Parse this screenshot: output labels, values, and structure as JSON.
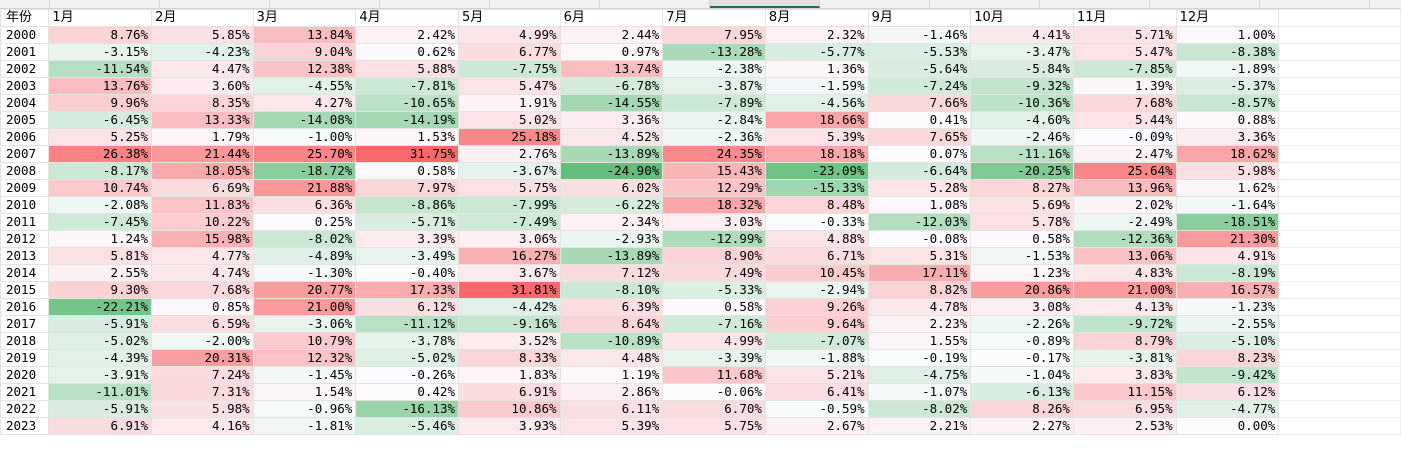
{
  "sheet": {
    "corner_label": "年份",
    "month_labels": [
      "1月",
      "2月",
      "3月",
      "4月",
      "5月",
      "6月",
      "7月",
      "8月",
      "9月",
      "10月",
      "11月",
      "12月"
    ],
    "selected_month": "7月",
    "rows": [
      {
        "year": "2000",
        "values": [
          "8.76%",
          "5.85%",
          "13.84%",
          "2.42%",
          "4.99%",
          "2.44%",
          "7.95%",
          "2.32%",
          "-1.46%",
          "4.41%",
          "5.71%",
          "1.00%"
        ]
      },
      {
        "year": "2001",
        "values": [
          "-3.15%",
          "-4.23%",
          "9.04%",
          "0.62%",
          "6.77%",
          "0.97%",
          "-13.28%",
          "-5.77%",
          "-5.53%",
          "-3.47%",
          "5.47%",
          "-8.38%"
        ]
      },
      {
        "year": "2002",
        "values": [
          "-11.54%",
          "4.47%",
          "12.38%",
          "5.88%",
          "-7.75%",
          "13.74%",
          "-2.38%",
          "1.36%",
          "-5.64%",
          "-5.84%",
          "-7.85%",
          "-1.89%"
        ]
      },
      {
        "year": "2003",
        "values": [
          "13.76%",
          "3.60%",
          "-4.55%",
          "-7.81%",
          "5.47%",
          "-6.78%",
          "-3.87%",
          "-1.59%",
          "-7.24%",
          "-9.32%",
          "1.39%",
          "-5.37%"
        ]
      },
      {
        "year": "2004",
        "values": [
          "9.96%",
          "8.35%",
          "4.27%",
          "-10.65%",
          "1.91%",
          "-14.55%",
          "-7.89%",
          "-4.56%",
          "7.66%",
          "-10.36%",
          "7.68%",
          "-8.57%"
        ]
      },
      {
        "year": "2005",
        "values": [
          "-6.45%",
          "13.33%",
          "-14.08%",
          "-14.19%",
          "5.02%",
          "3.36%",
          "-2.84%",
          "18.66%",
          "0.41%",
          "-4.60%",
          "5.44%",
          "0.88%"
        ]
      },
      {
        "year": "2006",
        "values": [
          "5.25%",
          "1.79%",
          "-1.00%",
          "1.53%",
          "25.18%",
          "4.52%",
          "-2.36%",
          "5.39%",
          "7.65%",
          "-2.46%",
          "-0.09%",
          "3.36%"
        ]
      },
      {
        "year": "2007",
        "values": [
          "26.38%",
          "21.44%",
          "25.70%",
          "31.75%",
          "2.76%",
          "-13.89%",
          "24.35%",
          "18.18%",
          "0.07%",
          "-11.16%",
          "2.47%",
          "18.62%"
        ]
      },
      {
        "year": "2008",
        "values": [
          "-8.17%",
          "18.05%",
          "-18.72%",
          "0.58%",
          "-3.67%",
          "-24.90%",
          "15.43%",
          "-23.09%",
          "-6.64%",
          "-20.25%",
          "25.64%",
          "5.98%"
        ]
      },
      {
        "year": "2009",
        "values": [
          "10.74%",
          "6.69%",
          "21.88%",
          "7.97%",
          "5.75%",
          "6.02%",
          "12.29%",
          "-15.33%",
          "5.28%",
          "8.27%",
          "13.96%",
          "1.62%"
        ]
      },
      {
        "year": "2010",
        "values": [
          "-2.08%",
          "11.83%",
          "6.36%",
          "-8.86%",
          "-7.99%",
          "-6.22%",
          "18.32%",
          "8.48%",
          "1.08%",
          "5.69%",
          "2.02%",
          "-1.64%"
        ]
      },
      {
        "year": "2011",
        "values": [
          "-7.45%",
          "10.22%",
          "0.25%",
          "-5.71%",
          "-7.49%",
          "2.34%",
          "3.03%",
          "-0.33%",
          "-12.03%",
          "5.78%",
          "-2.49%",
          "-18.51%"
        ]
      },
      {
        "year": "2012",
        "values": [
          "1.24%",
          "15.98%",
          "-8.02%",
          "3.39%",
          "3.06%",
          "-2.93%",
          "-12.99%",
          "4.88%",
          "-0.08%",
          "0.58%",
          "-12.36%",
          "21.30%"
        ]
      },
      {
        "year": "2013",
        "values": [
          "5.81%",
          "4.77%",
          "-4.89%",
          "-3.49%",
          "16.27%",
          "-13.89%",
          "8.90%",
          "6.71%",
          "5.31%",
          "-1.53%",
          "13.06%",
          "4.91%"
        ]
      },
      {
        "year": "2014",
        "values": [
          "2.55%",
          "4.74%",
          "-1.30%",
          "-0.40%",
          "3.67%",
          "7.12%",
          "7.49%",
          "10.45%",
          "17.11%",
          "1.23%",
          "4.83%",
          "-8.19%"
        ]
      },
      {
        "year": "2015",
        "values": [
          "9.30%",
          "7.68%",
          "20.77%",
          "17.33%",
          "31.81%",
          "-8.10%",
          "-5.33%",
          "-2.94%",
          "8.82%",
          "20.86%",
          "21.00%",
          "16.57%"
        ]
      },
      {
        "year": "2016",
        "values": [
          "-22.21%",
          "0.85%",
          "21.00%",
          "6.12%",
          "-4.42%",
          "6.39%",
          "0.58%",
          "9.26%",
          "4.78%",
          "3.08%",
          "4.13%",
          "-1.23%"
        ]
      },
      {
        "year": "2017",
        "values": [
          "-5.91%",
          "6.59%",
          "-3.06%",
          "-11.12%",
          "-9.16%",
          "8.64%",
          "-7.16%",
          "9.64%",
          "2.23%",
          "-2.26%",
          "-9.72%",
          "-2.55%"
        ]
      },
      {
        "year": "2018",
        "values": [
          "-5.02%",
          "-2.00%",
          "10.79%",
          "-3.78%",
          "3.52%",
          "-10.89%",
          "4.99%",
          "-7.07%",
          "1.55%",
          "-0.89%",
          "8.79%",
          "-5.10%"
        ]
      },
      {
        "year": "2019",
        "values": [
          "-4.39%",
          "20.31%",
          "12.32%",
          "-5.02%",
          "8.33%",
          "4.48%",
          "-3.39%",
          "-1.88%",
          "-0.19%",
          "-0.17%",
          "-3.81%",
          "8.23%"
        ]
      },
      {
        "year": "2020",
        "values": [
          "-3.91%",
          "7.24%",
          "-1.45%",
          "-0.26%",
          "1.83%",
          "1.19%",
          "11.68%",
          "5.21%",
          "-4.75%",
          "-1.04%",
          "3.83%",
          "-9.42%"
        ]
      },
      {
        "year": "2021",
        "values": [
          "-11.01%",
          "7.31%",
          "1.54%",
          "0.42%",
          "6.91%",
          "2.86%",
          "-0.06%",
          "6.41%",
          "-1.07%",
          "-6.13%",
          "11.15%",
          "6.12%"
        ]
      },
      {
        "year": "2022",
        "values": [
          "-5.91%",
          "5.98%",
          "-0.96%",
          "-16.13%",
          "10.86%",
          "6.11%",
          "6.70%",
          "-0.59%",
          "-8.02%",
          "8.26%",
          "6.95%",
          "-4.77%"
        ]
      },
      {
        "year": "2023",
        "values": [
          "6.91%",
          "4.16%",
          "-1.81%",
          "-5.46%",
          "3.93%",
          "5.39%",
          "5.75%",
          "2.67%",
          "2.21%",
          "2.27%",
          "2.53%",
          "0.00%"
        ]
      }
    ]
  },
  "colors": {
    "positive_max": "#f8696b",
    "negative_max": "#63be7b",
    "neutral": "#fcfcff",
    "grid_line": "#e3e3e3",
    "header_bg": "#f2f2f2",
    "selected_accent": "#217346"
  }
}
